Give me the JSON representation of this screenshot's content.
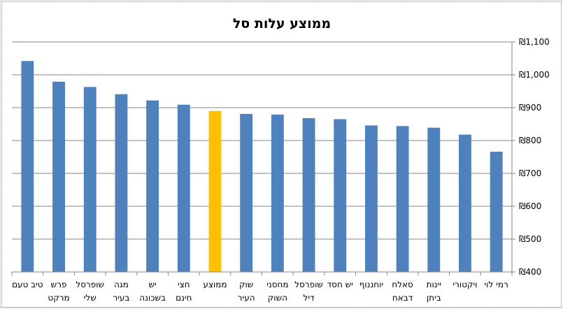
{
  "chart_data": {
    "type": "bar",
    "title": "ממוצע עלות סל",
    "categories": [
      "טיב טעם",
      "פרש מרקט",
      "שופרסל שלי",
      "מגה בעיר",
      "יש בשכונה",
      "חצי חינם",
      "ממוצע",
      "שוק העיר",
      "מחסני השוק",
      "שופרסל דיל",
      "יש חסד",
      "יוחננוף",
      "סאלח דבאח",
      "יינות ביתן",
      "ויקטורי",
      "רמי לוי"
    ],
    "values": [
      1042,
      979,
      963,
      941,
      922,
      909,
      890,
      881,
      879,
      868,
      865,
      846,
      844,
      839,
      818,
      766
    ],
    "highlight_category": "ממוצע",
    "colors": {
      "bar": "#4f81bd",
      "highlight": "#ffc000",
      "gridline": "#868686"
    },
    "y_axis": {
      "position": "right",
      "ylim": [
        400,
        1100
      ],
      "ticks": [
        400,
        500,
        600,
        700,
        800,
        900,
        1000,
        1100
      ],
      "tick_labels": [
        "₪400",
        "₪500",
        "₪600",
        "₪700",
        "₪800",
        "₪900",
        "₪1,000",
        "₪1,100"
      ]
    },
    "x_axis": {
      "reversed": true
    },
    "grid": true,
    "legend": "none"
  }
}
